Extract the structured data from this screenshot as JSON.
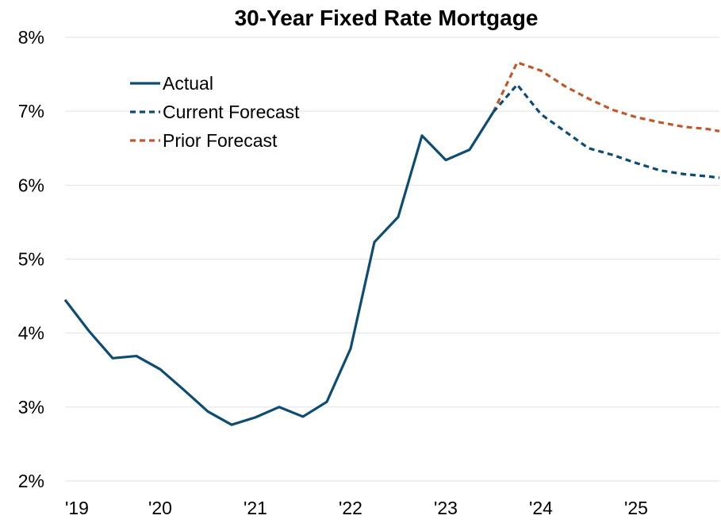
{
  "chart_data": {
    "type": "line",
    "title": "30-Year Fixed Rate Mortgage",
    "xlabel": "",
    "ylabel": "",
    "x_tick_labels": [
      "'19",
      "'20",
      "'21",
      "'22",
      "'23",
      "'24",
      "'25"
    ],
    "y_tick_labels": [
      "2%",
      "3%",
      "4%",
      "5%",
      "6%",
      "7%",
      "8%"
    ],
    "xlim": [
      2019.0,
      2025.875
    ],
    "ylim": [
      2,
      8
    ],
    "y_unit": "%",
    "grid": "horizontal",
    "legend_position": "top-left",
    "series": [
      {
        "name": "Actual",
        "style": "solid",
        "color": "#0d4c73",
        "x": [
          2019.0,
          2019.25,
          2019.5,
          2019.75,
          2020.0,
          2020.25,
          2020.5,
          2020.75,
          2021.0,
          2021.25,
          2021.5,
          2021.75,
          2022.0,
          2022.25,
          2022.5,
          2022.75,
          2023.0,
          2023.25,
          2023.5
        ],
        "values": [
          4.45,
          4.03,
          3.66,
          3.69,
          3.51,
          3.23,
          2.94,
          2.76,
          2.86,
          3.0,
          2.87,
          3.07,
          3.79,
          5.23,
          5.57,
          6.67,
          6.34,
          6.48,
          6.99
        ]
      },
      {
        "name": "Current Forecast",
        "style": "dashed",
        "color": "#0d4c73",
        "x": [
          2023.5,
          2023.75,
          2024.0,
          2024.25,
          2024.5,
          2024.75,
          2025.0,
          2025.25,
          2025.5,
          2025.75,
          2025.875
        ],
        "values": [
          6.99,
          7.36,
          6.96,
          6.73,
          6.5,
          6.41,
          6.3,
          6.2,
          6.15,
          6.12,
          6.1
        ]
      },
      {
        "name": "Prior Forecast",
        "style": "dashed",
        "color": "#c0582a",
        "x": [
          2023.5,
          2023.75,
          2024.0,
          2024.25,
          2024.5,
          2024.75,
          2025.0,
          2025.25,
          2025.5,
          2025.75,
          2025.875
        ],
        "values": [
          6.99,
          7.66,
          7.55,
          7.34,
          7.17,
          7.02,
          6.92,
          6.85,
          6.79,
          6.76,
          6.73
        ]
      }
    ]
  }
}
